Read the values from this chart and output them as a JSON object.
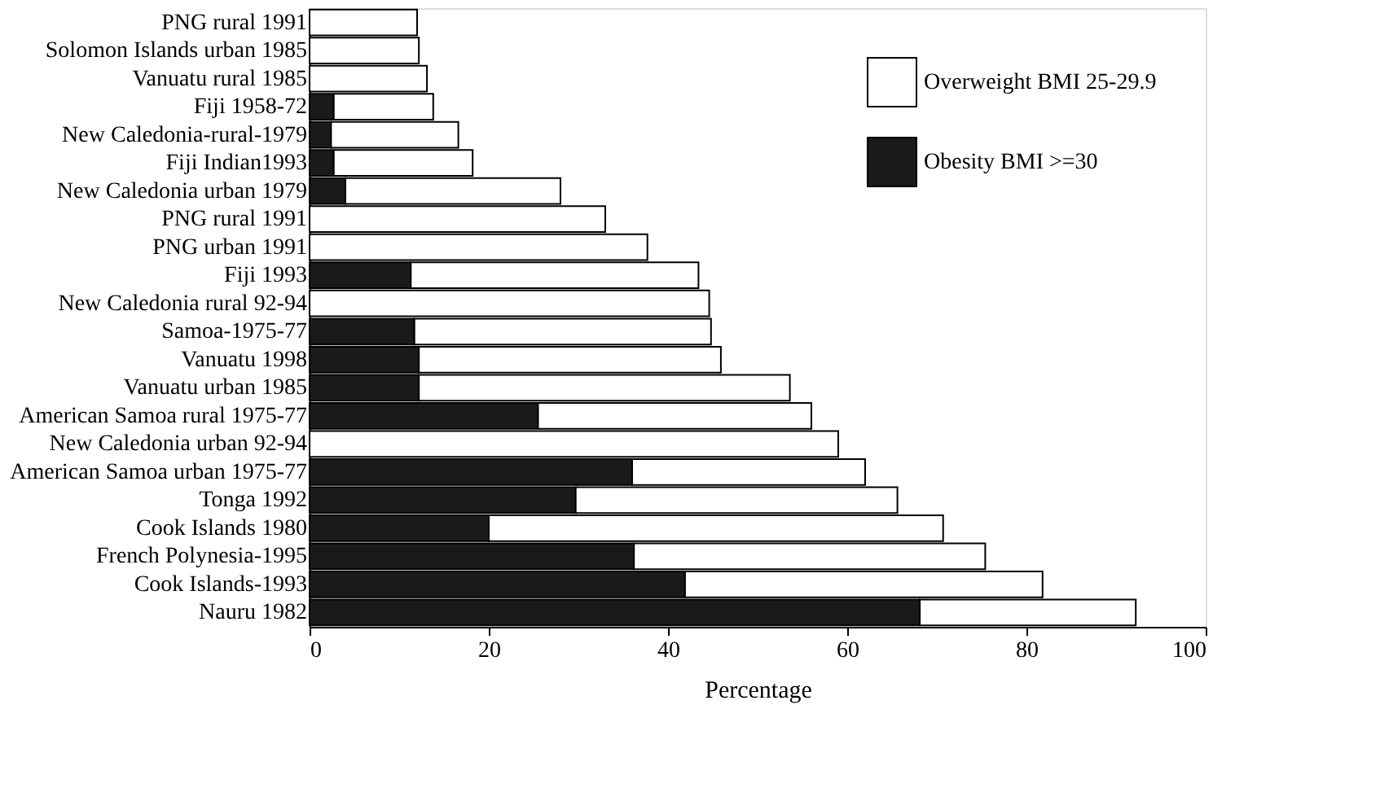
{
  "chart_data": {
    "type": "bar",
    "orientation": "horizontal",
    "stacked": true,
    "categories": [
      "PNG rural 1991",
      "Solomon Islands urban 1985",
      "Vanuatu rural 1985",
      "Fiji 1958-72",
      "New Caledonia-rural-1979",
      "Fiji Indian1993",
      "New Caledonia urban 1979",
      "PNG rural 1991",
      "PNG urban 1991",
      "Fiji 1993",
      "New Caledonia rural 92-94",
      "Samoa-1975-77",
      "Vanuatu 1998",
      "Vanuatu urban 1985",
      "American Samoa rural 1975-77",
      "New Caledonia urban 92-94",
      "American Samoa urban 1975-77",
      "Tonga 1992",
      "Cook Islands 1980",
      "French Polynesia-1995",
      "Cook Islands-1993",
      "Nauru 1982"
    ],
    "series": [
      {
        "name": "Obesity BMI >=30",
        "color": "#1a1a1a",
        "values": [
          0,
          0,
          0,
          2.7,
          2.4,
          2.7,
          4.0,
          0,
          0,
          11.3,
          0,
          11.7,
          12.2,
          12.2,
          25.5,
          0,
          36.0,
          29.7,
          20.0,
          36.2,
          41.9,
          68.1
        ]
      },
      {
        "name": "Overweight BMI 25-29.9",
        "color": "#ffffff",
        "values": [
          12.0,
          12.2,
          13.1,
          11.1,
          14.2,
          15.5,
          24.0,
          33.0,
          37.7,
          32.1,
          44.6,
          33.1,
          33.7,
          41.4,
          30.5,
          59.0,
          26.0,
          35.9,
          50.7,
          39.2,
          39.9,
          24.1
        ]
      }
    ],
    "xlabel": "Percentage",
    "xlim": [
      0,
      100
    ],
    "xticks": [
      0,
      20,
      40,
      60,
      80,
      100
    ],
    "legend": "top right",
    "grid": false
  }
}
